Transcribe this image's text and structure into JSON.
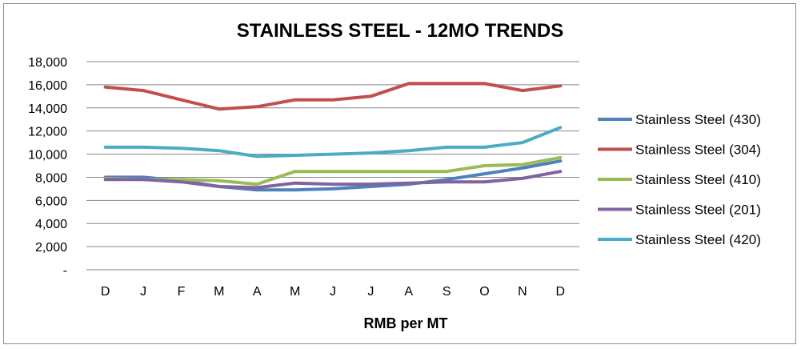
{
  "chart_data": {
    "type": "line",
    "title": "STAINLESS STEEL - 12MO TRENDS",
    "xlabel": "RMB per MT",
    "ylabel": "",
    "categories": [
      "D",
      "J",
      "F",
      "M",
      "A",
      "M",
      "J",
      "J",
      "A",
      "S",
      "O",
      "N",
      "D"
    ],
    "ylim": [
      0,
      18000
    ],
    "yticks": [
      0,
      2000,
      4000,
      6000,
      8000,
      10000,
      12000,
      14000,
      16000,
      18000
    ],
    "ytick_labels": [
      "-",
      "2,000",
      "4,000",
      "6,000",
      "8,000",
      "10,000",
      "12,000",
      "14,000",
      "16,000",
      "18,000"
    ],
    "grid": "horizontal",
    "legend_position": "right",
    "series": [
      {
        "name": "Stainless Steel (430)",
        "color": "#4f81bd",
        "values": [
          8000,
          8000,
          7700,
          7200,
          6900,
          6900,
          7000,
          7200,
          7400,
          7800,
          8300,
          8800,
          9400
        ]
      },
      {
        "name": "Stainless Steel (304)",
        "color": "#c0504d",
        "values": [
          15800,
          15500,
          14700,
          13900,
          14100,
          14700,
          14700,
          15000,
          16100,
          16100,
          16100,
          15500,
          15900
        ]
      },
      {
        "name": "Stainless Steel (410)",
        "color": "#9bbb59",
        "values": [
          7900,
          7800,
          7800,
          7700,
          7400,
          8500,
          8500,
          8500,
          8500,
          8500,
          9000,
          9100,
          9700
        ]
      },
      {
        "name": "Stainless Steel (201)",
        "color": "#8064a2",
        "values": [
          7800,
          7800,
          7600,
          7200,
          7100,
          7500,
          7400,
          7400,
          7500,
          7600,
          7600,
          7900,
          8500
        ]
      },
      {
        "name": "Stainless Steel (420)",
        "color": "#4bacc6",
        "values": [
          10600,
          10600,
          10500,
          10300,
          9800,
          9900,
          10000,
          10100,
          10300,
          10600,
          10600,
          11000,
          12300
        ]
      }
    ]
  }
}
